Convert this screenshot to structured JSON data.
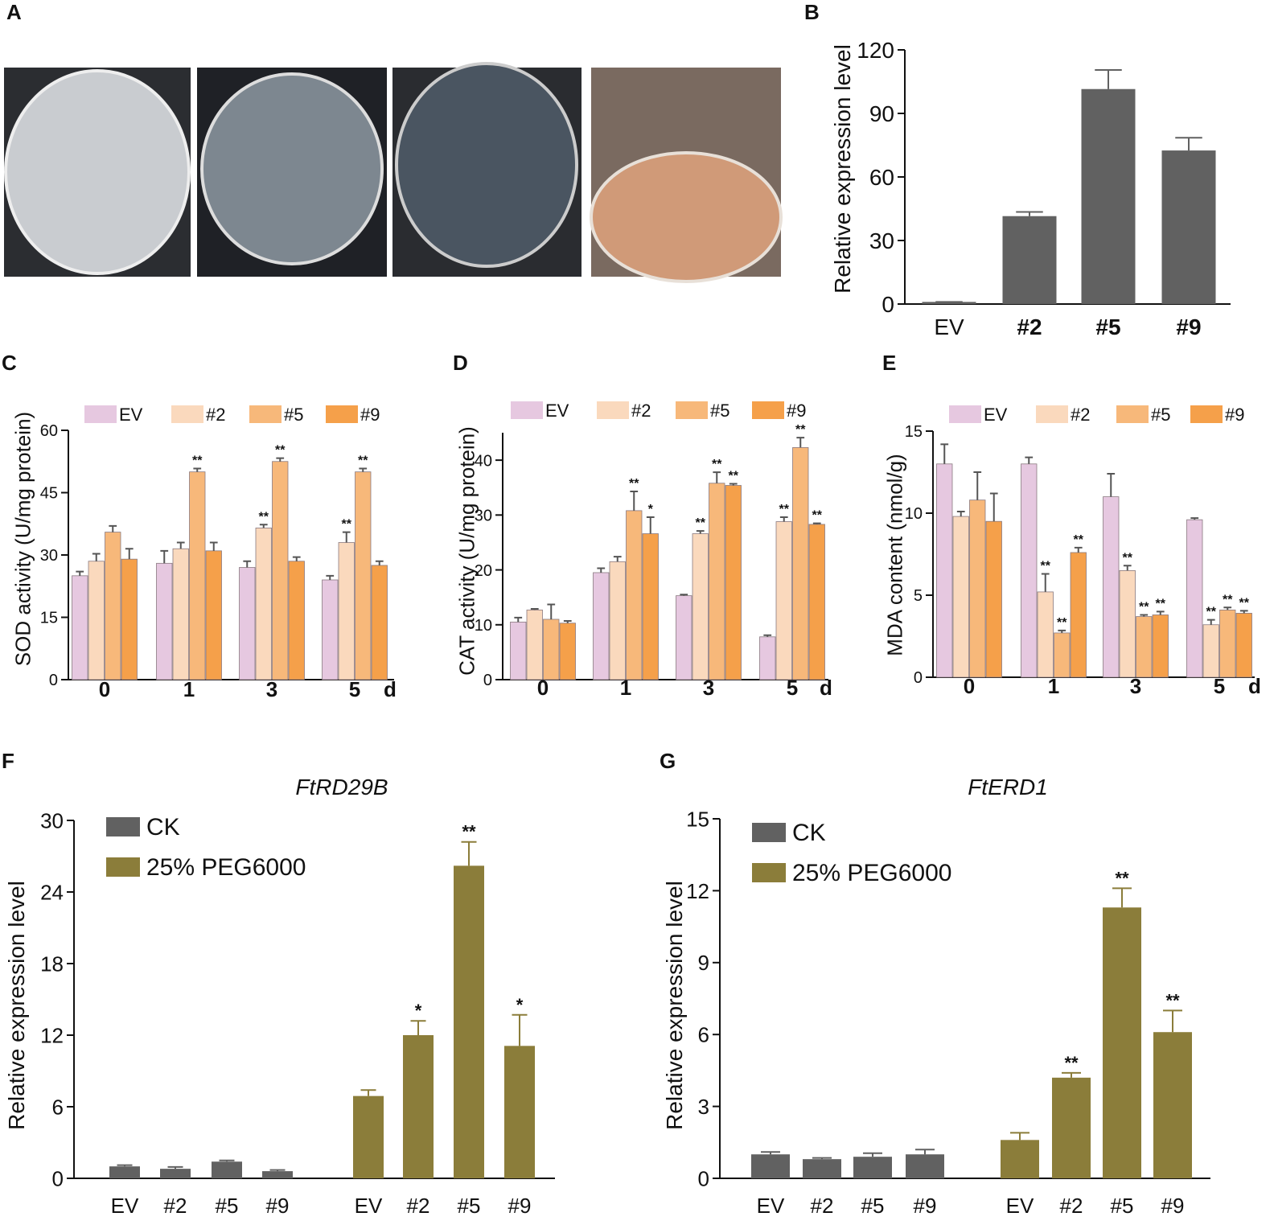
{
  "panel_a": {
    "label": "A"
  },
  "chart_data": [
    {
      "type": "bar",
      "panel": "B",
      "ylabel": "Relative expression level",
      "categories": [
        "EV",
        "#2",
        "#5",
        "#9"
      ],
      "values": [
        1,
        41.5,
        101.5,
        72.5
      ],
      "errors": [
        0,
        2,
        9,
        6
      ],
      "color": "#616161",
      "ylim": [
        0,
        120
      ],
      "yticks": [
        0,
        30,
        60,
        90,
        120
      ]
    },
    {
      "type": "bar",
      "panel": "C",
      "ylabel": "SOD activity (U/mg protein)",
      "x_unit": "d",
      "categories": [
        "0",
        "1",
        "3",
        "5"
      ],
      "ylim": [
        0,
        60
      ],
      "yticks": [
        0,
        15,
        30,
        45,
        60
      ],
      "series": [
        {
          "name": "EV",
          "color": "#e6c8e0",
          "values": [
            25,
            28,
            27,
            24
          ],
          "errors": [
            1,
            3,
            1.5,
            1
          ],
          "significance": [
            null,
            null,
            null,
            null
          ]
        },
        {
          "name": "#2",
          "color": "#fad9bd",
          "values": [
            28.5,
            31.5,
            36.5,
            33
          ],
          "errors": [
            1.8,
            1.5,
            0.8,
            2.5
          ],
          "significance": [
            null,
            null,
            "**",
            "**"
          ]
        },
        {
          "name": "#5",
          "color": "#f7b87a",
          "values": [
            35.5,
            50,
            52.5,
            50
          ],
          "errors": [
            1.5,
            0.8,
            0.8,
            0.8
          ],
          "significance": [
            null,
            "**",
            "**",
            "**"
          ]
        },
        {
          "name": "#9",
          "color": "#f5a04a",
          "values": [
            29,
            31,
            28.5,
            27.5
          ],
          "errors": [
            2.5,
            2,
            1,
            1
          ],
          "significance": [
            null,
            null,
            null,
            null
          ]
        }
      ]
    },
    {
      "type": "bar",
      "panel": "D",
      "ylabel": "CAT activity (U/mg protein)",
      "x_unit": "d",
      "categories": [
        "0",
        "1",
        "3",
        "5"
      ],
      "ylim": [
        0,
        45
      ],
      "yticks": [
        0,
        10,
        20,
        30,
        40
      ],
      "series": [
        {
          "name": "EV",
          "color": "#e6c8e0",
          "values": [
            10.5,
            19.5,
            15.3,
            7.8
          ],
          "errors": [
            0.8,
            0.8,
            0.2,
            0.3
          ],
          "significance": [
            null,
            null,
            null,
            null
          ]
        },
        {
          "name": "#2",
          "color": "#fad9bd",
          "values": [
            12.7,
            21.5,
            26.6,
            28.8
          ],
          "errors": [
            0.2,
            0.9,
            0.5,
            0.8
          ],
          "significance": [
            null,
            null,
            "**",
            "**"
          ]
        },
        {
          "name": "#5",
          "color": "#f7b87a",
          "values": [
            11,
            30.8,
            35.8,
            42.3
          ],
          "errors": [
            2.7,
            3.5,
            2,
            1.8
          ],
          "significance": [
            null,
            "**",
            "**",
            "**"
          ]
        },
        {
          "name": "#9",
          "color": "#f5a04a",
          "values": [
            10.3,
            26.6,
            35.4,
            28.3
          ],
          "errors": [
            0.4,
            3,
            0.3,
            0.2
          ],
          "significance": [
            null,
            "*",
            "**",
            "**"
          ]
        }
      ]
    },
    {
      "type": "bar",
      "panel": "E",
      "ylabel": "MDA content (nmol/g)",
      "x_unit": "d",
      "categories": [
        "0",
        "1",
        "3",
        "5"
      ],
      "ylim": [
        0,
        15
      ],
      "yticks": [
        0,
        5,
        10,
        15
      ],
      "series": [
        {
          "name": "EV",
          "color": "#e6c8e0",
          "values": [
            13,
            13,
            11,
            9.6
          ],
          "errors": [
            1.2,
            0.4,
            1.4,
            0.1
          ],
          "significance": [
            null,
            null,
            null,
            null
          ]
        },
        {
          "name": "#2",
          "color": "#fad9bd",
          "values": [
            9.8,
            5.2,
            6.5,
            3.2
          ],
          "errors": [
            0.3,
            1.1,
            0.3,
            0.3
          ],
          "significance": [
            null,
            "**",
            "**",
            "**"
          ]
        },
        {
          "name": "#5",
          "color": "#f7b87a",
          "values": [
            10.8,
            2.7,
            3.7,
            4.1
          ],
          "errors": [
            1.7,
            0.15,
            0.1,
            0.15
          ],
          "significance": [
            null,
            "**",
            "**",
            "**"
          ]
        },
        {
          "name": "#9",
          "color": "#f5a04a",
          "values": [
            9.5,
            7.6,
            3.8,
            3.9
          ],
          "errors": [
            1.7,
            0.3,
            0.2,
            0.15
          ],
          "significance": [
            null,
            "**",
            "**",
            "**"
          ]
        }
      ]
    },
    {
      "type": "bar",
      "panel": "F",
      "title": "FtRD29B",
      "ylabel": "Relative expression level",
      "categories": [
        "EV",
        "#2",
        "#5",
        "#9"
      ],
      "ylim": [
        0,
        30
      ],
      "yticks": [
        0,
        6,
        12,
        18,
        24,
        30
      ],
      "series": [
        {
          "name": "CK",
          "color": "#616161",
          "values": [
            1,
            0.8,
            1.4,
            0.6
          ],
          "errors": [
            0.1,
            0.15,
            0.1,
            0.1
          ],
          "significance": [
            null,
            null,
            null,
            null
          ]
        },
        {
          "name": "25% PEG6000",
          "color": "#8b7d3a",
          "values": [
            6.9,
            12,
            26.2,
            11.1
          ],
          "errors": [
            0.5,
            1.2,
            2,
            2.6
          ],
          "significance": [
            null,
            "*",
            "**",
            "*"
          ]
        }
      ]
    },
    {
      "type": "bar",
      "panel": "G",
      "title": "FtERD1",
      "ylabel": "Relative expression level",
      "categories": [
        "EV",
        "#2",
        "#5",
        "#9"
      ],
      "ylim": [
        0,
        15
      ],
      "yticks": [
        0,
        3,
        6,
        9,
        12,
        15
      ],
      "series": [
        {
          "name": "CK",
          "color": "#616161",
          "values": [
            1,
            0.8,
            0.9,
            1
          ],
          "errors": [
            0.1,
            0.05,
            0.15,
            0.2
          ],
          "significance": [
            null,
            null,
            null,
            null
          ]
        },
        {
          "name": "25% PEG6000",
          "color": "#8b7d3a",
          "values": [
            1.6,
            4.2,
            11.3,
            6.1
          ],
          "errors": [
            0.3,
            0.2,
            0.8,
            0.9
          ],
          "significance": [
            null,
            "**",
            "**",
            "**"
          ]
        }
      ]
    }
  ]
}
